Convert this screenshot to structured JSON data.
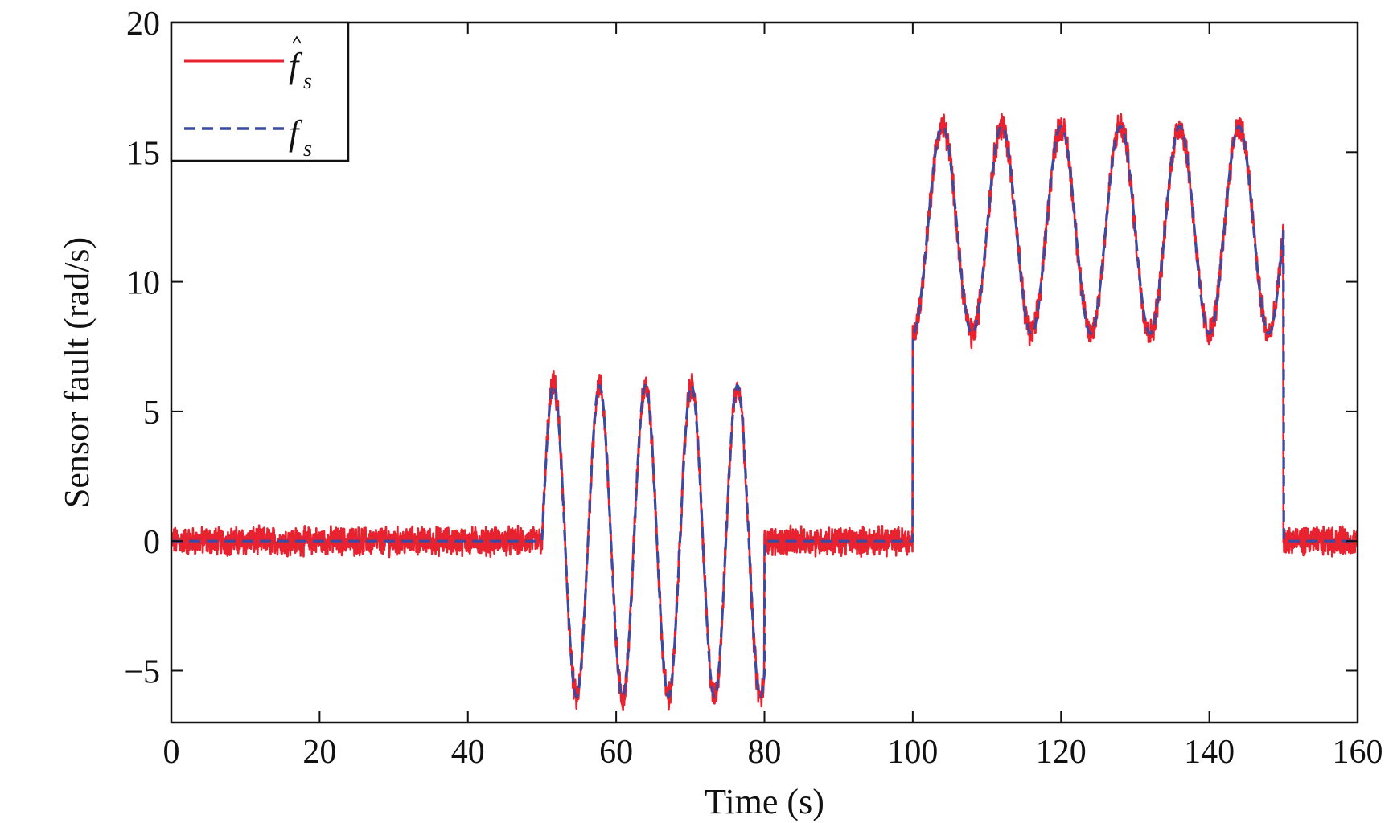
{
  "chart_data": {
    "type": "line",
    "title": "",
    "xlabel": "Time (s)",
    "ylabel": "Sensor fault (rad/s)",
    "xlim": [
      0,
      160
    ],
    "ylim": [
      -7,
      20
    ],
    "xticks": [
      0,
      20,
      40,
      60,
      80,
      100,
      120,
      140,
      160
    ],
    "xtick_labels": [
      "0",
      "20",
      "40",
      "60",
      "80",
      "100",
      "120",
      "140",
      "160"
    ],
    "yticks": [
      -5,
      0,
      5,
      10,
      15,
      20
    ],
    "ytick_labels": [
      "−5",
      "0",
      "5",
      "10",
      "15",
      "20"
    ],
    "grid": false,
    "legend_position": "top-left",
    "colors": {
      "estimate": "#e8222e",
      "actual": "#3b4aa3",
      "axes": "#111111"
    },
    "series": [
      {
        "name": "f̂s",
        "legend_main": "f",
        "legend_sub": "s",
        "legend_hat": true,
        "style": "solid",
        "description_of_shape": "tracks fs with added noise of about ±0.5",
        "segments": [
          {
            "x_range": [
              0,
              50
            ],
            "function": "0 + noise"
          },
          {
            "x_range": [
              50,
              80
            ],
            "function": "6*sin(2*pi*(t-50)/6.2) + noise"
          },
          {
            "x_range": [
              80,
              100
            ],
            "function": "0 + noise"
          },
          {
            "x_range": [
              100,
              150
            ],
            "function": "12 - 4*cos(2*pi*(t-100)/8) + noise"
          },
          {
            "x_range": [
              150,
              160
            ],
            "function": "0 + noise"
          }
        ]
      },
      {
        "name": "fs",
        "legend_main": "f",
        "legend_sub": "s",
        "legend_hat": false,
        "style": "dashed",
        "segments": [
          {
            "x_range": [
              0,
              50
            ],
            "function": "0"
          },
          {
            "x_range": [
              50,
              80
            ],
            "function": "6*sin(2*pi*(t-50)/6.2)"
          },
          {
            "x_range": [
              80,
              100
            ],
            "function": "0"
          },
          {
            "x_range": [
              100,
              150
            ],
            "function": "12 - 4*cos(2*pi*(t-100)/8)"
          },
          {
            "x_range": [
              150,
              160
            ],
            "function": "0"
          }
        ]
      }
    ]
  }
}
